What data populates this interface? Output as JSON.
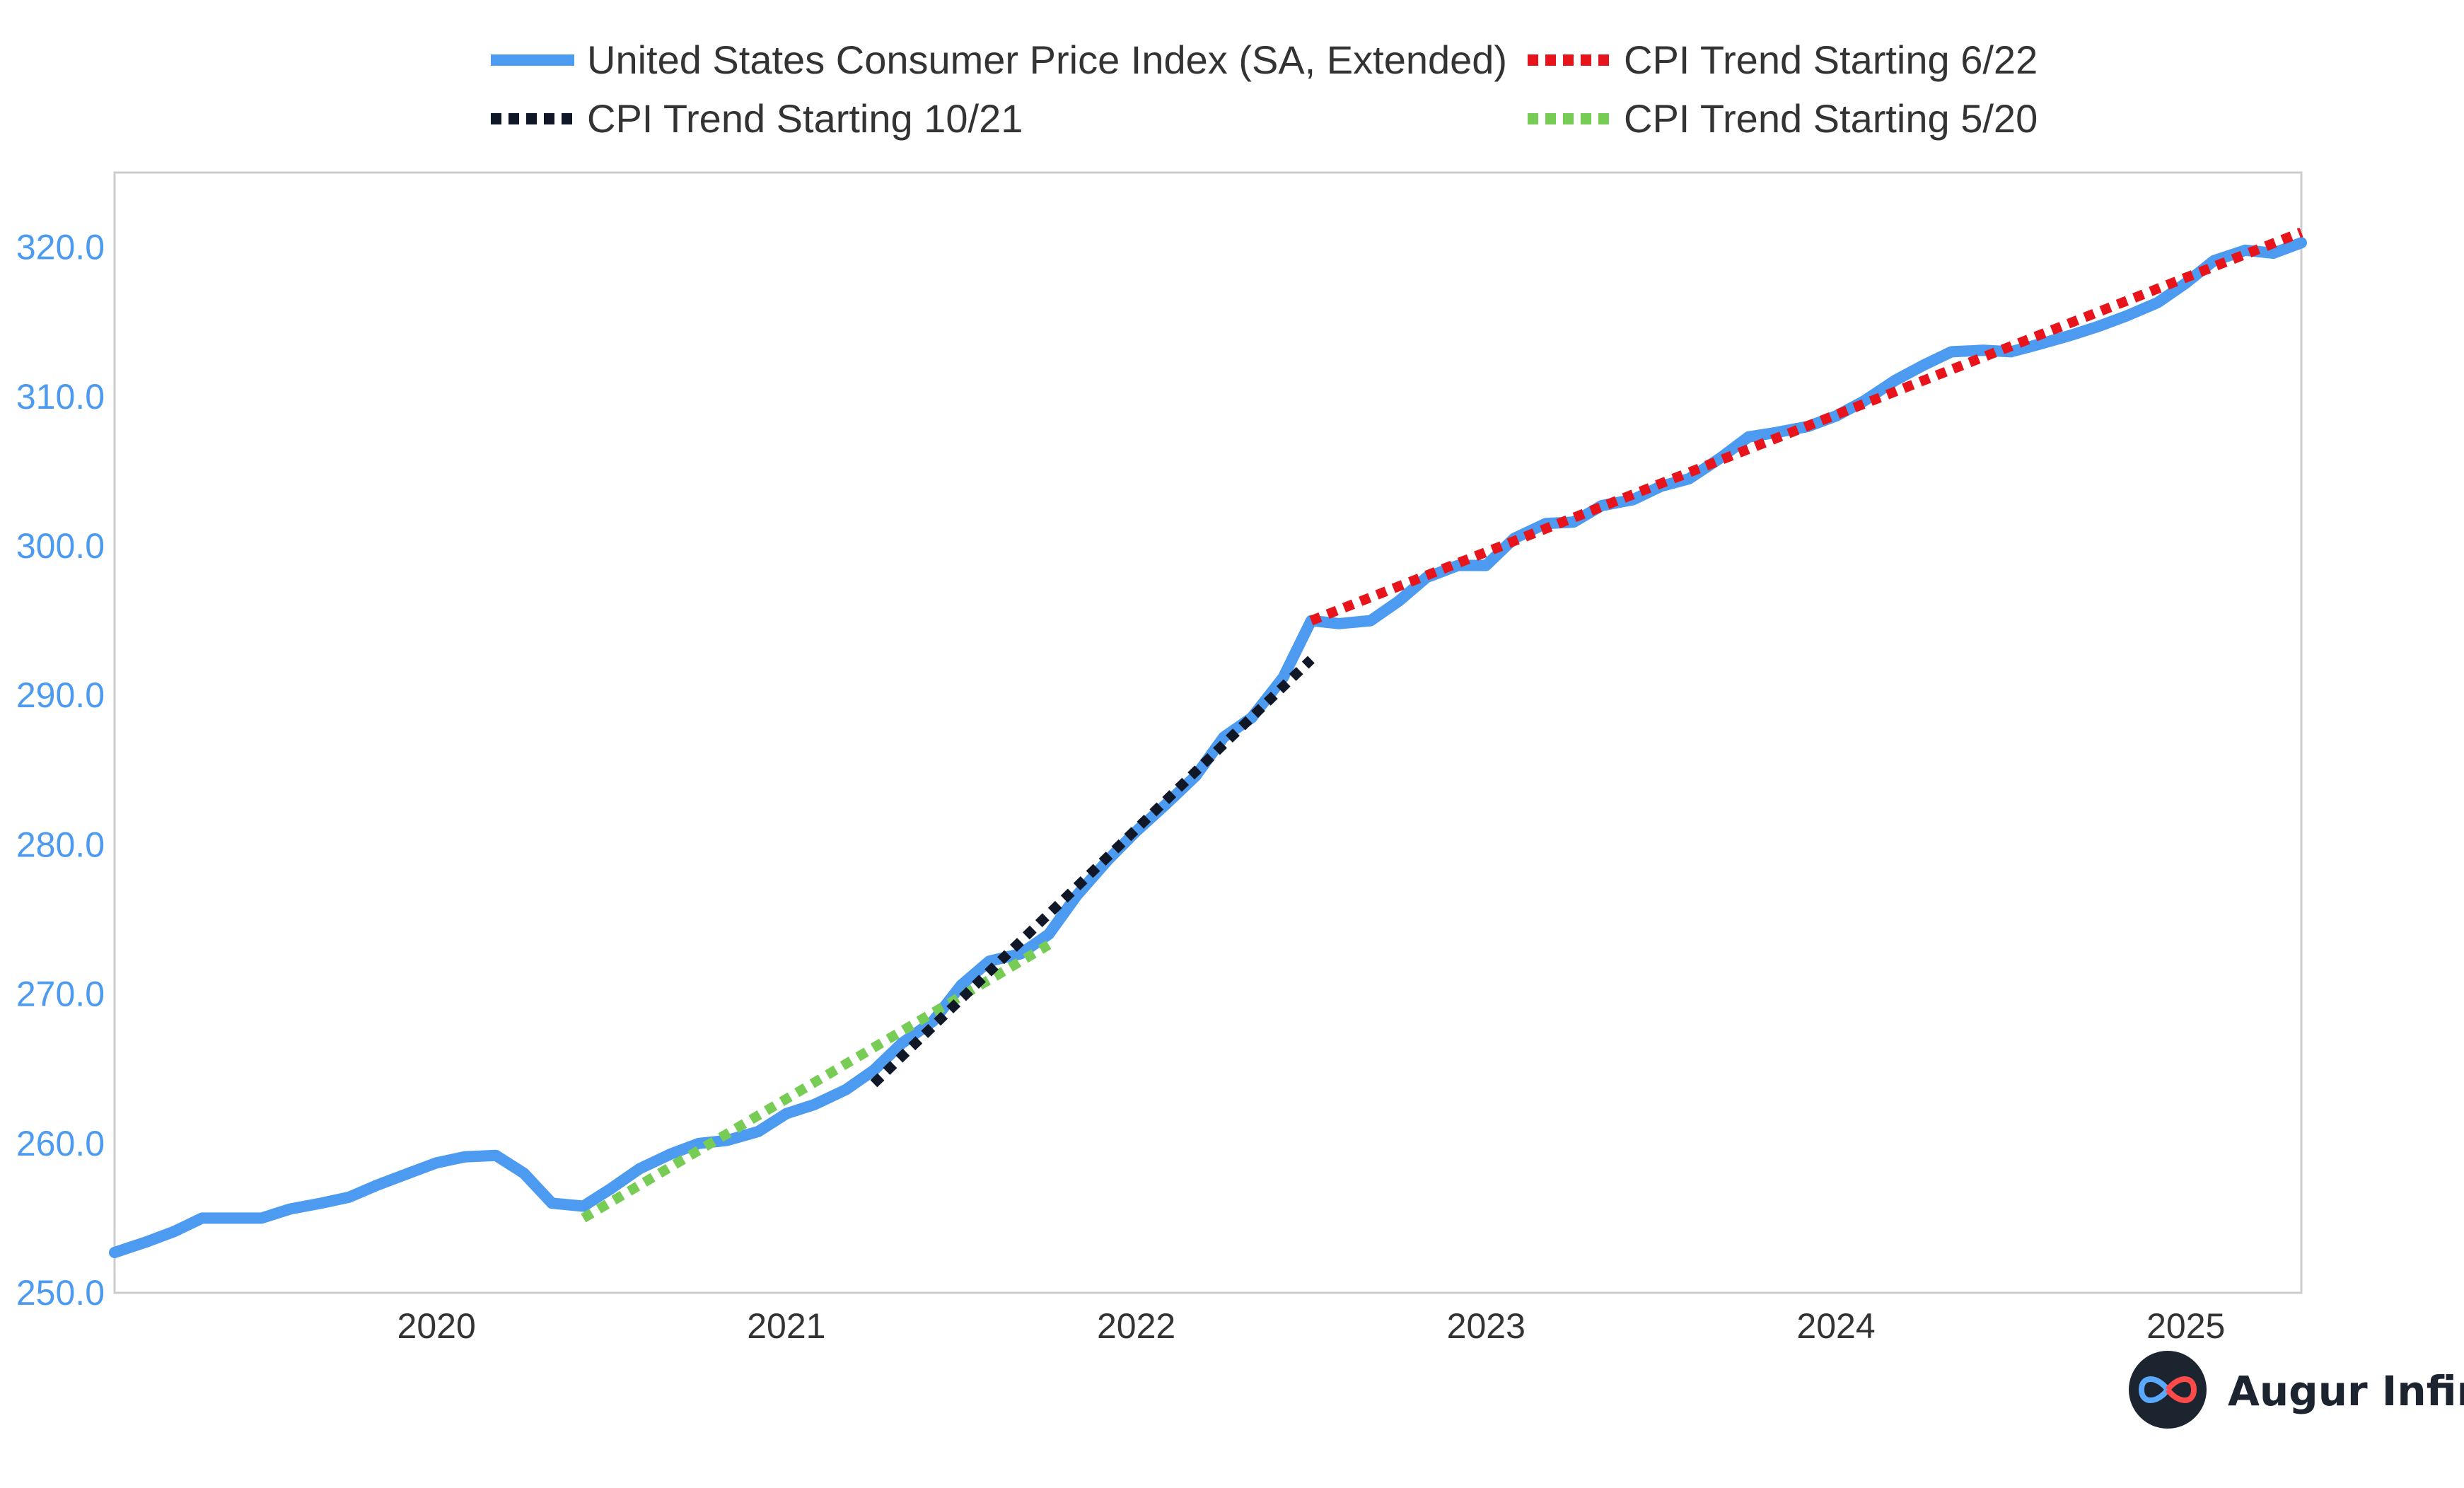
{
  "colors": {
    "cpi": "#4c9bf0",
    "trend_6_22": "#e8141c",
    "trend_10_21": "#101828",
    "trend_5_20": "#77cc55",
    "ytick": "#4c9bf0",
    "frame": "#cccccc"
  },
  "brand": {
    "name": "Augur Infinity",
    "icon": "infinity-loop-icon"
  },
  "chart_data": {
    "type": "line",
    "xlabel": "",
    "ylabel": "",
    "xlim": [
      2019.08,
      2025.33
    ],
    "ylim": [
      250,
      325
    ],
    "yticks": [
      250,
      260,
      270,
      280,
      290,
      300,
      310,
      320
    ],
    "ytick_labels": [
      "250.0",
      "260.0",
      "270.0",
      "280.0",
      "290.0",
      "300.0",
      "310.0",
      "320.0"
    ],
    "xticks": [
      2020,
      2021,
      2022,
      2023,
      2024,
      2025
    ],
    "xtick_labels": [
      "2020",
      "2021",
      "2022",
      "2023",
      "2024",
      "2025"
    ],
    "grid": false,
    "legend_position": "top",
    "series": [
      {
        "name": "United States Consumer Price Index (SA, Extended)",
        "style": "solid",
        "color": "#4c9bf0",
        "points": [
          [
            2019.08,
            252.7
          ],
          [
            2019.17,
            253.4
          ],
          [
            2019.25,
            254.1
          ],
          [
            2019.33,
            255.0
          ],
          [
            2019.42,
            255.0
          ],
          [
            2019.5,
            255.0
          ],
          [
            2019.58,
            255.6
          ],
          [
            2019.67,
            256.0
          ],
          [
            2019.75,
            256.4
          ],
          [
            2019.83,
            257.2
          ],
          [
            2019.92,
            258.0
          ],
          [
            2020.0,
            258.7
          ],
          [
            2020.08,
            259.1
          ],
          [
            2020.17,
            259.2
          ],
          [
            2020.25,
            258.0
          ],
          [
            2020.33,
            256.0
          ],
          [
            2020.42,
            255.8
          ],
          [
            2020.5,
            257.0
          ],
          [
            2020.58,
            258.3
          ],
          [
            2020.67,
            259.3
          ],
          [
            2020.75,
            260.0
          ],
          [
            2020.83,
            260.2
          ],
          [
            2020.92,
            260.8
          ],
          [
            2021.0,
            262.0
          ],
          [
            2021.08,
            262.6
          ],
          [
            2021.17,
            263.6
          ],
          [
            2021.25,
            264.9
          ],
          [
            2021.33,
            266.7
          ],
          [
            2021.42,
            268.2
          ],
          [
            2021.5,
            270.6
          ],
          [
            2021.58,
            272.2
          ],
          [
            2021.67,
            272.7
          ],
          [
            2021.75,
            274.0
          ],
          [
            2021.83,
            276.6
          ],
          [
            2021.92,
            279.0
          ],
          [
            2022.0,
            280.9
          ],
          [
            2022.08,
            282.6
          ],
          [
            2022.17,
            284.6
          ],
          [
            2022.25,
            287.2
          ],
          [
            2022.33,
            288.5
          ],
          [
            2022.42,
            291.2
          ],
          [
            2022.5,
            295.0
          ],
          [
            2022.58,
            294.8
          ],
          [
            2022.67,
            295.0
          ],
          [
            2022.75,
            296.3
          ],
          [
            2022.83,
            297.9
          ],
          [
            2022.92,
            298.7
          ],
          [
            2023.0,
            298.7
          ],
          [
            2023.08,
            300.5
          ],
          [
            2023.17,
            301.5
          ],
          [
            2023.25,
            301.6
          ],
          [
            2023.33,
            302.7
          ],
          [
            2023.42,
            303.1
          ],
          [
            2023.5,
            304.0
          ],
          [
            2023.58,
            304.5
          ],
          [
            2023.67,
            305.9
          ],
          [
            2023.75,
            307.3
          ],
          [
            2023.83,
            307.6
          ],
          [
            2023.92,
            308.0
          ],
          [
            2024.0,
            308.7
          ],
          [
            2024.08,
            309.7
          ],
          [
            2024.17,
            311.1
          ],
          [
            2024.25,
            312.1
          ],
          [
            2024.33,
            313.0
          ],
          [
            2024.42,
            313.1
          ],
          [
            2024.5,
            313.0
          ],
          [
            2024.58,
            313.5
          ],
          [
            2024.67,
            314.1
          ],
          [
            2024.75,
            314.7
          ],
          [
            2024.83,
            315.4
          ],
          [
            2024.92,
            316.3
          ],
          [
            2025.0,
            317.6
          ],
          [
            2025.08,
            319.1
          ],
          [
            2025.17,
            319.8
          ],
          [
            2025.25,
            319.6
          ],
          [
            2025.33,
            320.3
          ]
        ]
      },
      {
        "name": "CPI Trend Starting 6/22",
        "style": "dotted",
        "color": "#e8141c",
        "points": [
          [
            2022.5,
            295.0
          ],
          [
            2025.33,
            321.0
          ]
        ]
      },
      {
        "name": "CPI Trend Starting 10/21",
        "style": "dotted",
        "color": "#101828",
        "points": [
          [
            2021.25,
            264.0
          ],
          [
            2022.5,
            292.4
          ]
        ]
      },
      {
        "name": "CPI Trend Starting 5/20",
        "style": "dotted",
        "color": "#77cc55",
        "points": [
          [
            2020.42,
            255.0
          ],
          [
            2021.75,
            273.3
          ]
        ]
      }
    ]
  }
}
